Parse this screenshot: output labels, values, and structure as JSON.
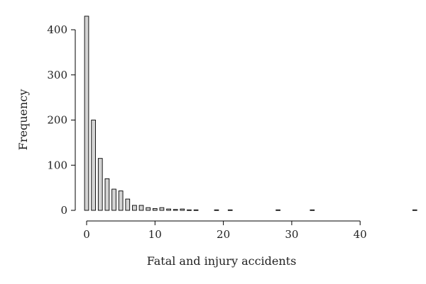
{
  "chart_data": {
    "type": "bar",
    "title": "",
    "xlabel": "Fatal and injury accidents",
    "ylabel": "Frequency",
    "xlim": [
      0,
      48
    ],
    "ylim": [
      0,
      430
    ],
    "x_ticks": [
      0,
      10,
      20,
      30,
      40
    ],
    "y_ticks": [
      0,
      100,
      200,
      300,
      400
    ],
    "grid": false,
    "bar_color": "#d3d3d3",
    "bar_width": 0.6,
    "x": [
      0,
      1,
      2,
      3,
      4,
      5,
      6,
      7,
      8,
      9,
      10,
      11,
      12,
      13,
      14,
      15,
      16,
      19,
      21,
      28,
      33,
      48
    ],
    "values": [
      430,
      200,
      115,
      70,
      47,
      43,
      25,
      11,
      11,
      6,
      4,
      6,
      3,
      2,
      3,
      1,
      1,
      1,
      1,
      1,
      1,
      1
    ]
  }
}
